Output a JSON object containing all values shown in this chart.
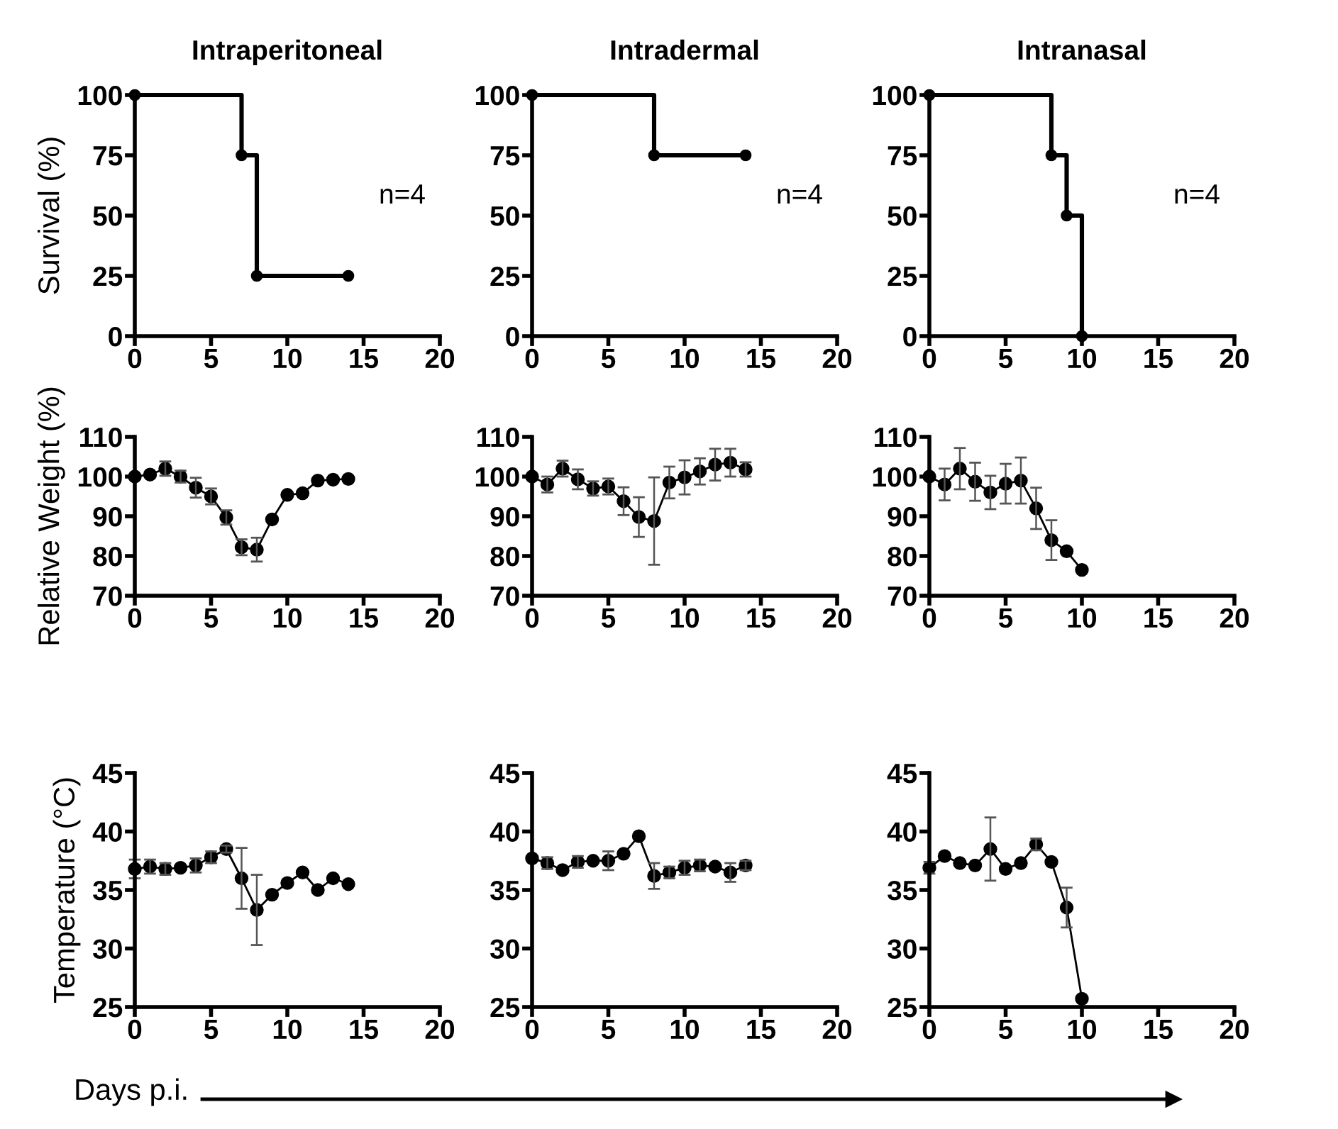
{
  "chart_data": [
    {
      "type": "step",
      "title": "Intraperitoneal",
      "ylabel": "Survival (%)",
      "x": [
        0,
        7,
        8,
        14
      ],
      "series": [
        {
          "color": "#000000",
          "values": [
            100,
            75,
            25,
            25
          ]
        }
      ],
      "xlim": [
        0,
        20
      ],
      "xticks": [
        0,
        5,
        10,
        15,
        20
      ],
      "ylim": [
        0,
        100
      ],
      "yticks": [
        0,
        25,
        50,
        75,
        100
      ],
      "marker": "circle",
      "annotations": [
        "n=4"
      ]
    },
    {
      "type": "step",
      "title": "Intradermal",
      "x": [
        0,
        8,
        14
      ],
      "series": [
        {
          "color": "#000000",
          "values": [
            100,
            75,
            75
          ]
        }
      ],
      "xlim": [
        0,
        20
      ],
      "xticks": [
        0,
        5,
        10,
        15,
        20
      ],
      "ylim": [
        0,
        100
      ],
      "yticks": [
        0,
        25,
        50,
        75,
        100
      ],
      "marker": "circle",
      "annotations": [
        "n=4"
      ]
    },
    {
      "type": "step",
      "title": "Intranasal",
      "x": [
        0,
        8,
        9,
        10
      ],
      "series": [
        {
          "color": "#000000",
          "values": [
            100,
            75,
            50,
            0
          ]
        }
      ],
      "xlim": [
        0,
        20
      ],
      "xticks": [
        0,
        5,
        10,
        15,
        20
      ],
      "ylim": [
        0,
        100
      ],
      "yticks": [
        0,
        25,
        50,
        75,
        100
      ],
      "marker": "circle",
      "annotations": [
        "n=4"
      ]
    },
    {
      "type": "line",
      "ylabel": "Relative Weight (%)",
      "x": [
        0,
        1,
        2,
        3,
        4,
        5,
        6,
        7,
        8,
        9,
        10,
        11,
        12,
        13,
        14
      ],
      "series": [
        {
          "color": "#000000",
          "values": [
            100,
            100.5,
            102,
            100,
            97.2,
            95,
            89.7,
            82.2,
            81.6,
            89.2,
            95.4,
            95.8,
            99,
            99.2,
            99.4
          ],
          "errors": [
            null,
            null,
            1.8,
            1.5,
            2.5,
            2,
            1.8,
            2,
            3,
            null,
            null,
            null,
            null,
            null,
            null
          ]
        }
      ],
      "xlim": [
        0,
        20
      ],
      "xticks": [
        0,
        5,
        10,
        15,
        20
      ],
      "ylim": [
        70,
        110
      ],
      "yticks": [
        70,
        80,
        90,
        100,
        110
      ],
      "marker": "circle"
    },
    {
      "type": "line",
      "x": [
        0,
        1,
        2,
        3,
        4,
        5,
        6,
        7,
        8,
        9,
        10,
        11,
        12,
        13,
        14
      ],
      "series": [
        {
          "color": "#000000",
          "values": [
            100,
            98,
            102,
            99.3,
            97,
            97.5,
            93.8,
            89.8,
            88.8,
            98.5,
            99.8,
            101.3,
            103,
            103.5,
            101.8
          ],
          "errors": [
            null,
            2,
            2,
            2.5,
            1.8,
            2,
            3.5,
            5,
            11,
            4,
            4.3,
            3.3,
            4,
            3.5,
            1.8
          ]
        }
      ],
      "xlim": [
        0,
        20
      ],
      "xticks": [
        0,
        5,
        10,
        15,
        20
      ],
      "ylim": [
        70,
        110
      ],
      "yticks": [
        70,
        80,
        90,
        100,
        110
      ],
      "marker": "circle"
    },
    {
      "type": "line",
      "x": [
        0,
        1,
        2,
        3,
        4,
        5,
        6,
        7,
        8,
        9,
        10
      ],
      "series": [
        {
          "color": "#000000",
          "values": [
            100,
            98,
            102,
            98.7,
            96,
            98.2,
            99,
            92,
            84,
            81.2,
            76.5
          ],
          "errors": [
            null,
            4,
            5.2,
            4.8,
            4.2,
            5,
            5.8,
            5.2,
            5,
            null,
            null
          ]
        }
      ],
      "xlim": [
        0,
        20
      ],
      "xticks": [
        0,
        5,
        10,
        15,
        20
      ],
      "ylim": [
        70,
        110
      ],
      "yticks": [
        70,
        80,
        90,
        100,
        110
      ],
      "marker": "circle"
    },
    {
      "type": "line",
      "ylabel": "Temperature (°C)",
      "x": [
        0,
        1,
        2,
        3,
        4,
        5,
        6,
        7,
        8,
        9,
        10,
        11,
        12,
        13,
        14
      ],
      "series": [
        {
          "color": "#000000",
          "values": [
            36.8,
            37,
            36.8,
            36.9,
            37.1,
            37.8,
            38.5,
            36,
            33.3,
            34.6,
            35.6,
            36.5,
            35,
            36,
            35.5
          ],
          "errors": [
            0.8,
            0.6,
            0.5,
            null,
            0.6,
            0.5,
            0.3,
            2.6,
            3,
            null,
            null,
            null,
            null,
            null,
            null
          ]
        }
      ],
      "xlim": [
        0,
        20
      ],
      "xticks": [
        0,
        5,
        10,
        15,
        20
      ],
      "ylim": [
        25,
        45
      ],
      "yticks": [
        25,
        30,
        35,
        40,
        45
      ],
      "marker": "circle",
      "annotations": [
        "Days p.i."
      ]
    },
    {
      "type": "line",
      "x": [
        0,
        1,
        2,
        3,
        4,
        5,
        6,
        7,
        8,
        9,
        10,
        11,
        12,
        13,
        14
      ],
      "series": [
        {
          "color": "#000000",
          "values": [
            37.7,
            37.3,
            36.7,
            37.4,
            37.5,
            37.5,
            38.1,
            39.6,
            36.2,
            36.5,
            36.9,
            37.1,
            37,
            36.5,
            37.1
          ],
          "errors": [
            null,
            0.5,
            null,
            0.5,
            null,
            0.8,
            null,
            null,
            1.1,
            0.5,
            0.6,
            0.5,
            null,
            0.8,
            0.4
          ]
        }
      ],
      "xlim": [
        0,
        20
      ],
      "xticks": [
        0,
        5,
        10,
        15,
        20
      ],
      "ylim": [
        25,
        45
      ],
      "yticks": [
        25,
        30,
        35,
        40,
        45
      ],
      "marker": "circle"
    },
    {
      "type": "line",
      "x": [
        0,
        1,
        2,
        3,
        4,
        5,
        6,
        7,
        8,
        9,
        10
      ],
      "series": [
        {
          "color": "#000000",
          "values": [
            36.9,
            37.9,
            37.3,
            37.1,
            38.5,
            36.8,
            37.3,
            38.9,
            37.4,
            33.5,
            25.7
          ],
          "errors": [
            0.5,
            null,
            null,
            null,
            2.7,
            null,
            null,
            0.5,
            null,
            1.7,
            null
          ]
        }
      ],
      "xlim": [
        0,
        20
      ],
      "xticks": [
        0,
        5,
        10,
        15,
        20
      ],
      "ylim": [
        25,
        45
      ],
      "yticks": [
        25,
        30,
        35,
        40,
        45
      ],
      "marker": "circle"
    }
  ]
}
